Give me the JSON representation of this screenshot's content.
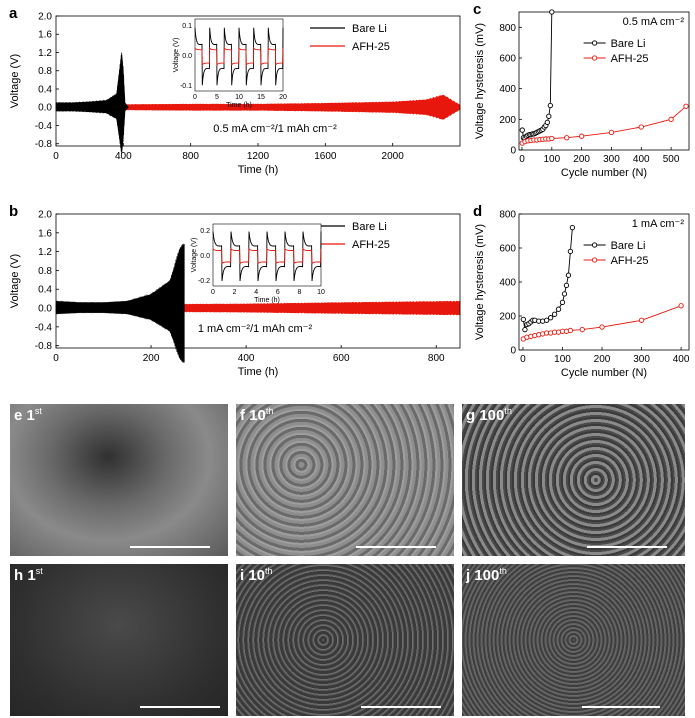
{
  "panels": {
    "a": {
      "label": "a",
      "ylabel": "Voltage (V)",
      "xlabel": "Time (h)",
      "yticks": [
        "2.0",
        "1.6",
        "1.2",
        "0.8",
        "0.4",
        "0.0",
        "-0.4",
        "-0.8"
      ],
      "xticks": [
        "0",
        "400",
        "800",
        "1200",
        "1600",
        "2000"
      ],
      "legend": [
        "Bare Li",
        "AFH-25"
      ],
      "condition": "0.5 mA cm⁻²/1 mAh cm⁻²",
      "inset": {
        "ylabel": "Voltage (V)",
        "xlabel": "Time (h)",
        "yticks": [
          "0.1",
          "0.0",
          "-0.1"
        ],
        "xticks": [
          "0",
          "5",
          "10",
          "15",
          "20"
        ]
      }
    },
    "b": {
      "label": "b",
      "ylabel": "Voltage (V)",
      "xlabel": "Time (h)",
      "yticks": [
        "2.0",
        "1.6",
        "1.2",
        "0.8",
        "0.4",
        "0.0",
        "-0.4",
        "-0.8"
      ],
      "xticks": [
        "0",
        "200",
        "400",
        "600",
        "800"
      ],
      "legend": [
        "Bare Li",
        "AFH-25"
      ],
      "condition": "1 mA cm⁻²/1 mAh cm⁻²",
      "inset": {
        "ylabel": "Voltage (V)",
        "xlabel": "Time (h)",
        "yticks": [
          "0.2",
          "0.0",
          "-0.2"
        ],
        "xticks": [
          "0",
          "2",
          "4",
          "6",
          "8",
          "10"
        ]
      }
    },
    "c": {
      "label": "c",
      "ylabel": "Voltage hysteresis (mV)",
      "xlabel": "Cycle number (N)",
      "condition": "0.5 mA cm⁻²",
      "legend": [
        "Bare Li",
        "AFH-25"
      ],
      "yticks": [
        "0",
        "200",
        "400",
        "600",
        "800"
      ],
      "xticks": [
        "0",
        "100",
        "200",
        "300",
        "400",
        "500"
      ]
    },
    "d": {
      "label": "d",
      "ylabel": "Voltage hysteresis (mV)",
      "xlabel": "Cycle number (N)",
      "condition": "1 mA cm⁻²",
      "legend": [
        "Bare Li",
        "AFH-25"
      ],
      "yticks": [
        "0",
        "200",
        "400",
        "600",
        "800"
      ],
      "xticks": [
        "0",
        "100",
        "200",
        "300",
        "400"
      ]
    }
  },
  "sem": [
    {
      "letter": "e",
      "cycle": "1",
      "sup": "st"
    },
    {
      "letter": "f",
      "cycle": "10",
      "sup": "th"
    },
    {
      "letter": "g",
      "cycle": "100",
      "sup": "th"
    },
    {
      "letter": "h",
      "cycle": "1",
      "sup": "st"
    },
    {
      "letter": "i",
      "cycle": "10",
      "sup": "th"
    },
    {
      "letter": "j",
      "cycle": "100",
      "sup": "th"
    }
  ],
  "colors": {
    "bare": "#000000",
    "afh": "#e8170d"
  },
  "chart_data": [
    {
      "type": "line",
      "panel": "a",
      "xlabel": "Time (h)",
      "ylabel": "Voltage (V)",
      "xlim": [
        0,
        2400
      ],
      "ylim": [
        -0.85,
        2.0
      ],
      "series": [
        {
          "name": "Bare Li",
          "x": [
            0,
            100,
            200,
            300,
            360,
            390,
            400,
            410,
            430
          ],
          "amplitude": [
            0.1,
            0.1,
            0.12,
            0.15,
            0.3,
            1.25,
            0.85,
            0.1,
            0.0
          ]
        },
        {
          "name": "AFH-25",
          "x": [
            0,
            400,
            800,
            1200,
            1600,
            2000,
            2200,
            2300,
            2400
          ],
          "amplitude": [
            0.06,
            0.06,
            0.07,
            0.07,
            0.09,
            0.12,
            0.17,
            0.28,
            0.05
          ]
        }
      ]
    },
    {
      "type": "line",
      "panel": "b",
      "xlabel": "Time (h)",
      "ylabel": "Voltage (V)",
      "xlim": [
        0,
        850
      ],
      "ylim": [
        -0.85,
        2.0
      ],
      "series": [
        {
          "name": "Bare Li",
          "x": [
            0,
            50,
            100,
            150,
            200,
            240,
            260,
            270
          ],
          "amplitude": [
            0.15,
            0.12,
            0.12,
            0.15,
            0.3,
            0.6,
            1.3,
            1.4
          ]
        },
        {
          "name": "AFH-25",
          "x": [
            0,
            200,
            400,
            600,
            850
          ],
          "amplitude": [
            0.08,
            0.08,
            0.09,
            0.12,
            0.15
          ]
        }
      ]
    },
    {
      "type": "scatter",
      "panel": "c",
      "xlabel": "Cycle number (N)",
      "ylabel": "Voltage hysteresis (mV)",
      "xlim": [
        -10,
        560
      ],
      "ylim": [
        0,
        900
      ],
      "series": [
        {
          "name": "Bare Li",
          "x": [
            1,
            5,
            10,
            15,
            20,
            25,
            30,
            35,
            40,
            45,
            50,
            55,
            60,
            65,
            70,
            75,
            80,
            85,
            90,
            95,
            100
          ],
          "y": [
            130,
            80,
            75,
            90,
            95,
            100,
            100,
            105,
            105,
            110,
            115,
            120,
            125,
            130,
            135,
            150,
            160,
            180,
            220,
            290,
            900
          ]
        },
        {
          "name": "AFH-25",
          "x": [
            1,
            10,
            20,
            30,
            40,
            50,
            60,
            70,
            80,
            90,
            100,
            150,
            200,
            300,
            400,
            500,
            550
          ],
          "y": [
            45,
            55,
            60,
            62,
            65,
            65,
            68,
            70,
            72,
            72,
            75,
            80,
            90,
            115,
            150,
            200,
            285
          ]
        }
      ]
    },
    {
      "type": "scatter",
      "panel": "d",
      "xlabel": "Cycle number (N)",
      "ylabel": "Voltage hysteresis (mV)",
      "xlim": [
        -10,
        420
      ],
      "ylim": [
        0,
        800
      ],
      "series": [
        {
          "name": "Bare Li",
          "x": [
            1,
            5,
            10,
            15,
            20,
            25,
            30,
            40,
            50,
            60,
            70,
            80,
            90,
            100,
            105,
            110,
            115,
            120,
            125
          ],
          "y": [
            180,
            120,
            150,
            155,
            165,
            175,
            175,
            170,
            170,
            175,
            190,
            210,
            240,
            280,
            330,
            380,
            440,
            580,
            720
          ]
        },
        {
          "name": "AFH-25",
          "x": [
            1,
            10,
            20,
            30,
            40,
            50,
            60,
            70,
            80,
            90,
            100,
            110,
            120,
            150,
            200,
            300,
            400
          ],
          "y": [
            65,
            75,
            80,
            85,
            90,
            95,
            100,
            100,
            105,
            105,
            110,
            110,
            115,
            120,
            135,
            175,
            260
          ]
        }
      ]
    }
  ]
}
